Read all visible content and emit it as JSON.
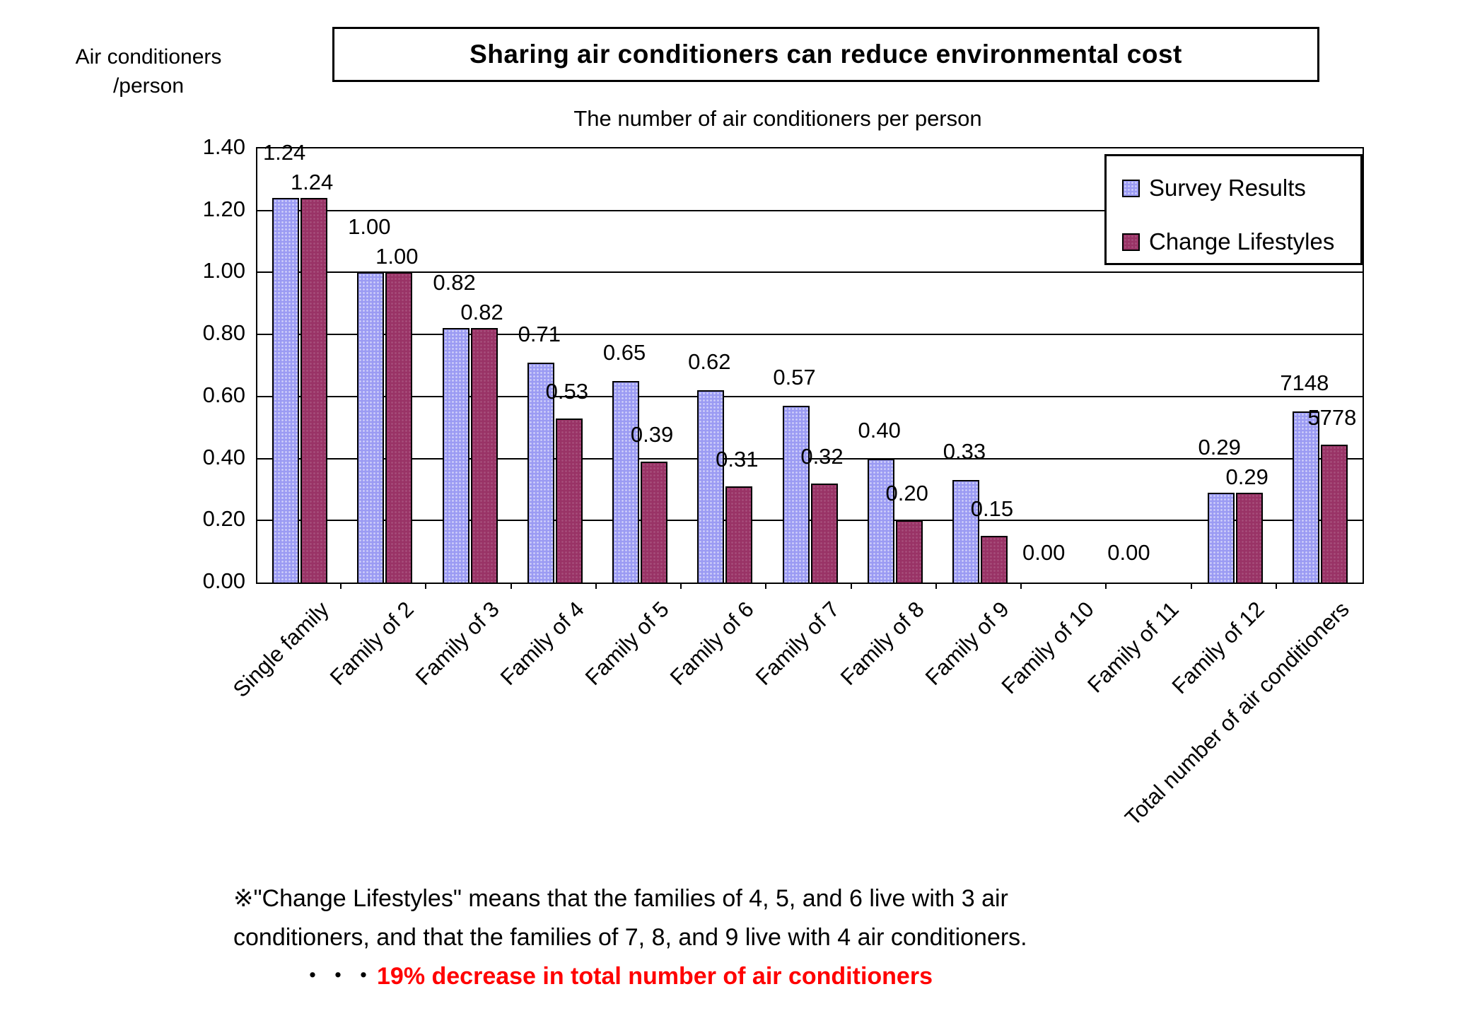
{
  "header": {
    "title": "Sharing air conditioners can reduce environmental cost",
    "y_axis_title_line1": "Air conditioners",
    "y_axis_title_line2": "/person",
    "subtitle": "The number of air conditioners per person"
  },
  "legend": {
    "items": [
      {
        "label": "Survey Results",
        "color": "#9b9bf3"
      },
      {
        "label": "Change Lifestyles",
        "color": "#993366"
      }
    ]
  },
  "footnote": {
    "line1": "※\"Change Lifestyles\" means that the families of 4, 5, and 6 live with 3 air",
    "line2": "conditioners, and that the families of 7, 8, and 9 live with 4 air conditioners.",
    "line3_prefix": "・・・",
    "line3_text": "19% decrease in total number of air conditioners",
    "line3_color": "#ff0000"
  },
  "chart_data": {
    "type": "bar",
    "title": "The number of air conditioners per person",
    "xlabel": "",
    "ylabel": "Air conditioners /person",
    "ylim": [
      0,
      1.4
    ],
    "ytick_step": 0.2,
    "ytick_labels": [
      "1.40",
      "1.20",
      "1.00",
      "0.80",
      "0.60",
      "0.40",
      "0.20",
      "0.00"
    ],
    "grid": true,
    "legend_position": "top-right",
    "categories": [
      "Single family",
      "Family of 2",
      "Family of 3",
      "Family of 4",
      "Family of 5",
      "Family of 6",
      "Family of 7",
      "Family of 8",
      "Family of 9",
      "Family of 10",
      "Family of 11",
      "Family of 12",
      "Total number of air conditioners"
    ],
    "series": [
      {
        "name": "Survey Results",
        "color": "#9b9bf3",
        "values": [
          1.24,
          1.0,
          0.82,
          0.71,
          0.65,
          0.62,
          0.57,
          0.4,
          0.33,
          0.0,
          0.0,
          0.29,
          7148
        ]
      },
      {
        "name": "Change Lifestyles",
        "color": "#993366",
        "values": [
          1.24,
          1.0,
          0.82,
          0.53,
          0.39,
          0.31,
          0.32,
          0.2,
          0.15,
          0.0,
          0.0,
          0.29,
          5778
        ]
      }
    ],
    "data_labels": [
      [
        "1.24",
        "1.00",
        "0.82",
        "0.71",
        "0.65",
        "0.62",
        "0.57",
        "0.40",
        "0.33",
        "0.00",
        "0.00",
        "0.29",
        "7148"
      ],
      [
        "1.24",
        "1.00",
        "0.82",
        "0.53",
        "0.39",
        "0.31",
        "0.32",
        "0.20",
        "0.15",
        "",
        "",
        "0.29",
        "5778"
      ]
    ],
    "total_bar_axis_units": [
      0.552,
      0.445
    ]
  }
}
